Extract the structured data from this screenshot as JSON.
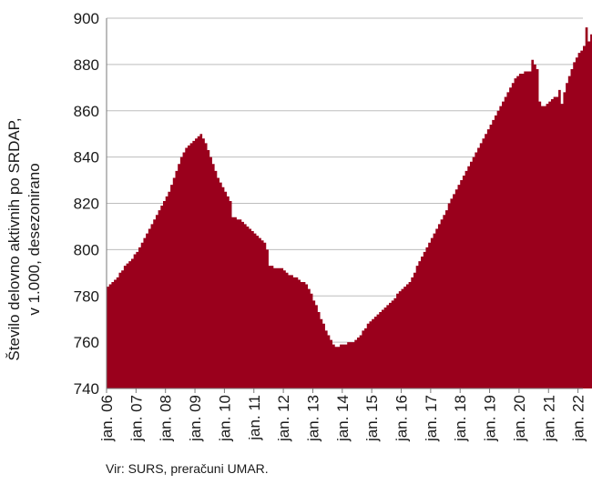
{
  "chart_data": {
    "type": "area",
    "ylabel_line1": "Število delovno aktivnih po SRDAP,",
    "ylabel_line2": "v 1.000, desezonirano",
    "ylim": [
      740,
      900
    ],
    "yticks": [
      740,
      760,
      780,
      800,
      820,
      840,
      860,
      880,
      900
    ],
    "xlim": [
      "2006-01",
      "2022-03"
    ],
    "xtick_labels": [
      "jan. 06",
      "jan. 07",
      "jan. 08",
      "jan. 09",
      "jan. 10",
      "jan. 11",
      "jan. 12",
      "jan. 13",
      "jan. 14",
      "jan. 15",
      "jan. 16",
      "jan. 17",
      "jan. 18",
      "jan. 19",
      "jan. 20",
      "jan. 21",
      "jan. 22"
    ],
    "grid": "horizontal",
    "legend": "none",
    "fill_color": "#9a001c",
    "series": [
      {
        "start": "2006-01",
        "frequency": "monthly",
        "values": [
          784,
          785,
          786,
          787,
          788,
          790,
          791,
          793,
          794,
          795,
          796,
          798,
          799,
          801,
          803,
          805,
          807,
          809,
          811,
          813,
          815,
          817,
          819,
          821,
          823,
          825,
          828,
          831,
          834,
          837,
          840,
          842,
          844,
          845,
          846,
          847,
          848,
          849,
          850,
          848,
          846,
          843,
          840,
          837,
          834,
          831,
          829,
          827,
          825,
          823,
          821,
          814,
          814,
          813,
          813,
          812,
          811,
          810,
          809,
          808,
          807,
          806,
          805,
          804,
          803,
          800,
          793,
          793,
          792,
          792,
          792,
          792,
          791,
          790,
          789,
          789,
          788,
          788,
          787,
          786,
          786,
          785,
          783,
          781,
          778,
          776,
          773,
          770,
          768,
          765,
          763,
          761,
          759,
          758,
          758,
          759,
          759,
          759,
          760,
          760,
          760,
          761,
          762,
          763,
          765,
          766,
          768,
          769,
          770,
          771,
          772,
          773,
          774,
          775,
          776,
          777,
          778,
          779,
          781,
          782,
          783,
          784,
          785,
          786,
          788,
          790,
          793,
          795,
          797,
          799,
          801,
          803,
          805,
          807,
          809,
          811,
          813,
          815,
          817,
          820,
          822,
          824,
          826,
          828,
          830,
          832,
          834,
          836,
          838,
          840,
          842,
          844,
          846,
          848,
          850,
          852,
          854,
          856,
          858,
          860,
          862,
          864,
          866,
          868,
          870,
          872,
          874,
          875,
          876,
          876,
          877,
          877,
          877,
          882,
          880,
          878,
          864,
          862,
          862,
          863,
          864,
          865,
          866,
          866,
          869,
          863,
          868,
          872,
          875,
          878,
          881,
          883,
          885,
          886,
          888,
          896,
          890,
          893
        ]
      }
    ]
  },
  "source_note": "Vir: SURS, preračuni UMAR."
}
